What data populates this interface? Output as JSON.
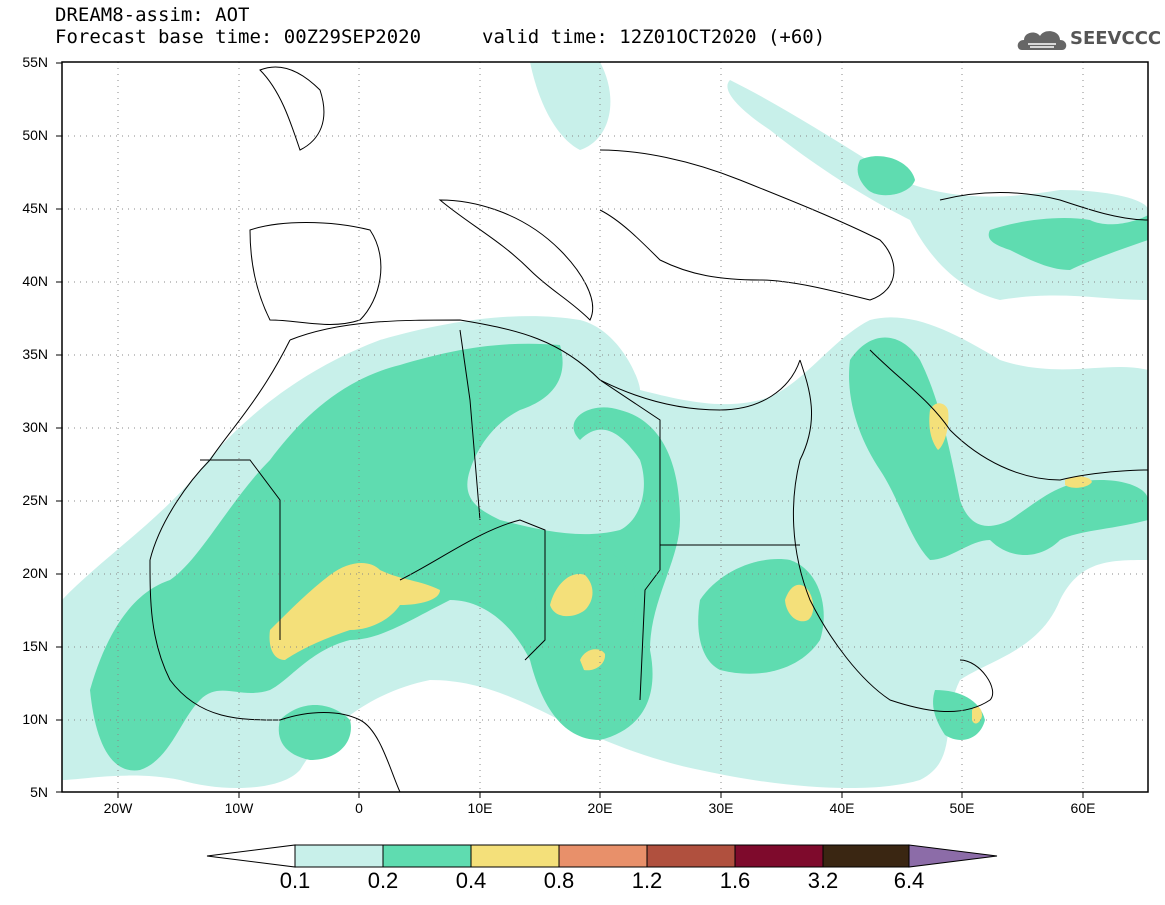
{
  "header": {
    "title": "DREAM8-assim: AOT",
    "base_time": "Forecast base time: 00Z29SEP2020",
    "valid_time": "valid time: 12Z01OCT2020 (+60)",
    "logo_text": "SEEVCCC"
  },
  "map": {
    "lon_range": [
      -25,
      65
    ],
    "lat_range": [
      5,
      55
    ],
    "lat_ticks": [
      "55N",
      "50N",
      "45N",
      "40N",
      "35N",
      "30N",
      "25N",
      "20N",
      "15N",
      "10N",
      "5N"
    ],
    "lon_ticks": [
      "20W",
      "10W",
      "0",
      "10E",
      "20E",
      "30E",
      "40E",
      "50E",
      "60E"
    ],
    "gridlines": "dotted"
  },
  "colorbar": {
    "labels": [
      "0.1",
      "0.2",
      "0.4",
      "0.8",
      "1.2",
      "1.6",
      "3.2",
      "6.4"
    ],
    "colors": [
      "#ffffff",
      "#c8f0ea",
      "#5fdcb0",
      "#f4e07a",
      "#e8906a",
      "#b0503e",
      "#7e0a2c",
      "#3a2612",
      "#8c6ca8"
    ]
  },
  "colors": {
    "level1": "#c8f0ea",
    "level2": "#5fdcb0",
    "level3": "#f4e07a"
  }
}
